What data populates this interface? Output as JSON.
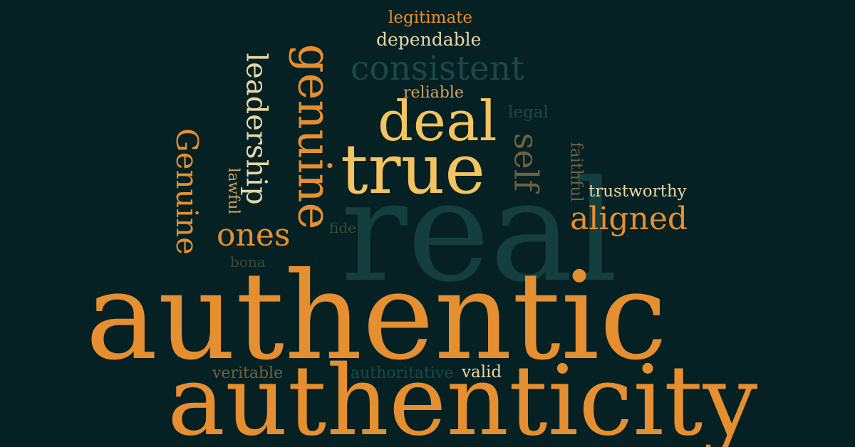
{
  "words": {
    "legitimate": "legitimate",
    "dependable": "dependable",
    "consistent": "consistent",
    "reliable": "reliable",
    "deal": "deal",
    "legal": "legal",
    "true": "true",
    "self": "self",
    "faithful": "faithful",
    "trustworthy": "trustworthy",
    "aligned": "aligned",
    "real": "real",
    "genuine_lower": "genuine",
    "leadership": "leadership",
    "genuine_cap": "Genuine",
    "lawful": "lawful",
    "ones": "ones",
    "fide": "fide",
    "bona": "bona",
    "authentic": "authentic",
    "veritable": "veritable",
    "authoritative": "authoritative",
    "valid": "valid",
    "authenticity": "authenticity"
  },
  "colors": {
    "background": "#062123",
    "orange": "#e68f30",
    "yellow": "#f3c460",
    "cream": "#e9d7a6",
    "teal": "#153f3f"
  }
}
